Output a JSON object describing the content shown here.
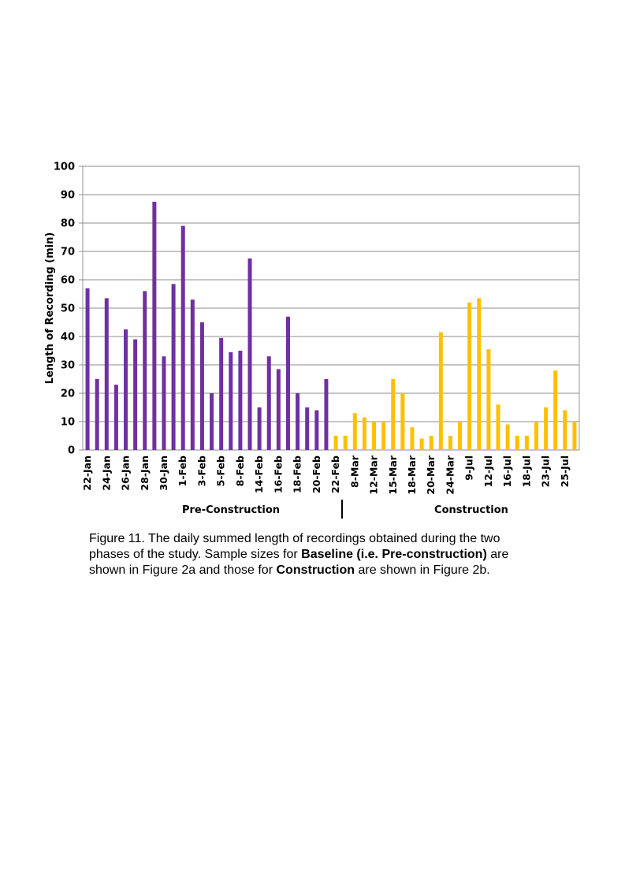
{
  "chart_data": {
    "type": "bar",
    "title": "",
    "xlabel": "",
    "ylabel": "Length of Recording (min)",
    "ylim": [
      0,
      100
    ],
    "yticks": [
      0,
      10,
      20,
      30,
      40,
      50,
      60,
      70,
      80,
      90,
      100
    ],
    "grid": true,
    "legend": "none",
    "colors": {
      "pre": "#7030A0",
      "construction": "#FFC000"
    },
    "series": [
      {
        "phase": "Pre-Construction",
        "values": [
          57,
          25,
          53.5,
          23,
          42.5,
          39,
          56,
          87.5,
          33,
          58.5,
          79,
          53,
          45,
          20,
          39.5,
          34.5,
          35,
          67.5,
          15,
          33,
          28.5,
          47,
          20,
          15,
          14,
          25
        ]
      },
      {
        "phase": "Construction",
        "values": [
          5,
          5,
          13,
          11.5,
          10,
          10,
          25,
          20,
          8,
          4,
          5,
          41.5,
          5,
          10,
          52,
          53.5,
          35.5,
          16,
          9,
          5,
          5,
          10,
          15,
          28,
          14,
          10
        ]
      }
    ],
    "tick_labels": [
      "22-Jan",
      "24-Jan",
      "26-Jan",
      "28-Jan",
      "30-Jan",
      "1-Feb",
      "3-Feb",
      "5-Feb",
      "8-Feb",
      "14-Feb",
      "16-Feb",
      "18-Feb",
      "20-Feb",
      "22-Feb",
      "8-Mar",
      "12-Mar",
      "15-Mar",
      "18-Mar",
      "20-Mar",
      "24-Mar",
      "9-Jul",
      "12-Jul",
      "16-Jul",
      "18-Jul",
      "23-Jul",
      "25-Jul"
    ],
    "phase_labels": [
      "Pre-Construction",
      "Construction"
    ]
  },
  "caption": {
    "part1": "Figure 11.  The daily summed length of recordings obtained during the two phases of the study. Sample sizes for ",
    "bold1": "Baseline (i.e. Pre-construction)",
    "part2": " are shown in Figure 2a and those for ",
    "bold2": "Construction",
    "part3": " are shown in Figure 2b."
  }
}
